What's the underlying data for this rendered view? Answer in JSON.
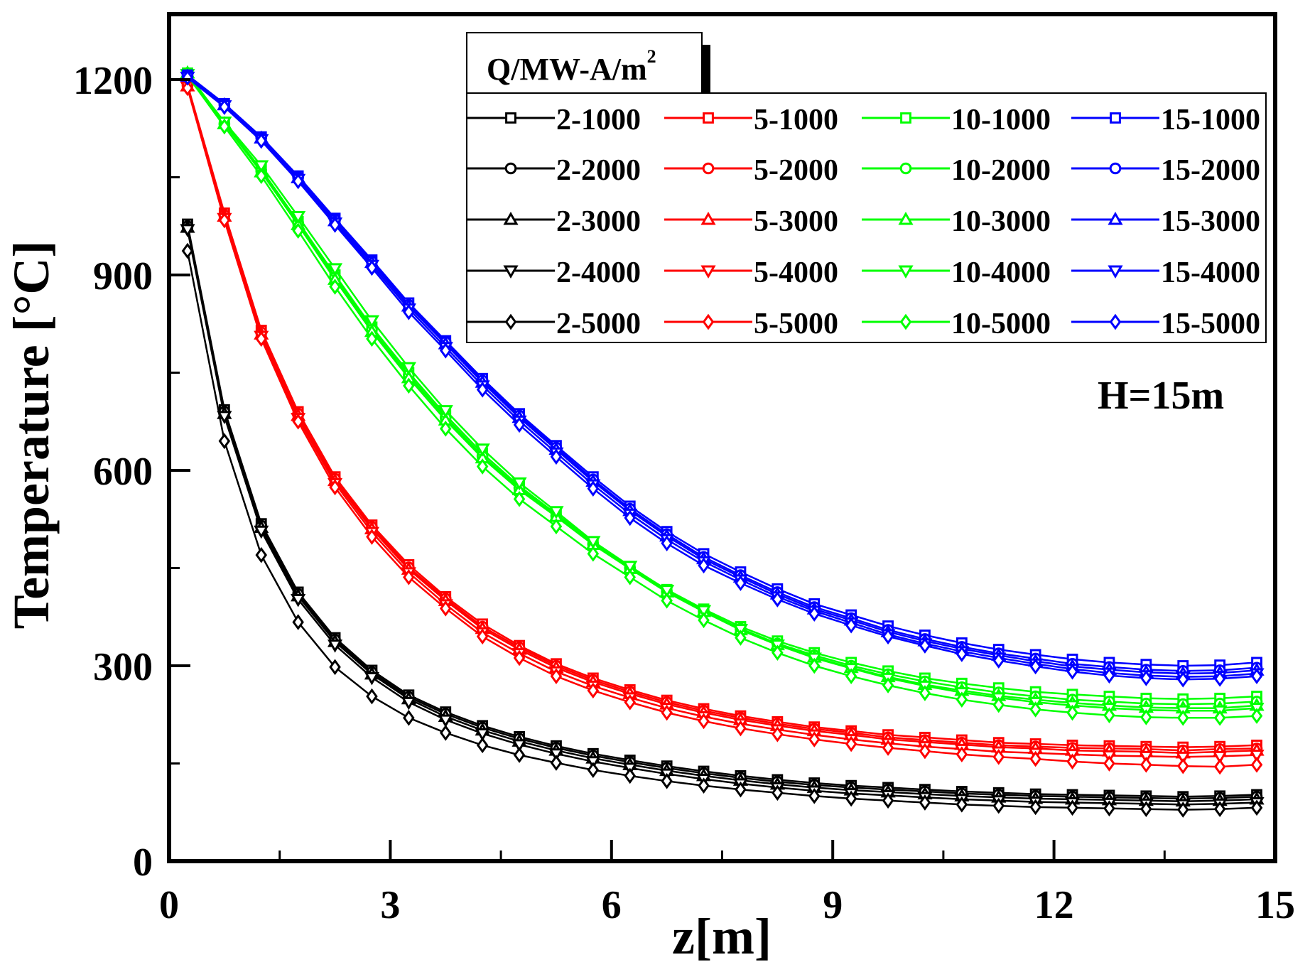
{
  "chart_data": {
    "type": "line",
    "xlabel": "z[m]",
    "ylabel": "Temperature [°C]",
    "xlim": [
      0,
      15
    ],
    "ylim": [
      0,
      1300
    ],
    "xticks": [
      0,
      3,
      6,
      9,
      12,
      15
    ],
    "yticks": [
      0,
      300,
      600,
      900,
      1200
    ],
    "xtick_labels": [
      "0",
      "3",
      "6",
      "9",
      "12",
      "15"
    ],
    "ytick_labels": [
      "0",
      "300",
      "600",
      "900",
      "1200"
    ],
    "grid": false,
    "legend_title": "Q/MW-A/m",
    "legend_title_sup": "2",
    "legend_placement": "top-right",
    "annotation": "H=15m",
    "x": [
      0.25,
      0.75,
      1.25,
      1.75,
      2.25,
      2.75,
      3.25,
      3.75,
      4.25,
      4.75,
      5.25,
      5.75,
      6.25,
      6.75,
      7.25,
      7.75,
      8.25,
      8.75,
      9.25,
      9.75,
      10.25,
      10.75,
      11.25,
      11.75,
      12.25,
      12.75,
      13.25,
      13.75,
      14.25,
      14.75
    ],
    "series": [
      {
        "name": "2-1000",
        "color": "#000000",
        "marker": "square",
        "values": [
          978,
          693,
          518,
          413,
          343,
          293,
          255,
          229,
          208,
          191,
          177,
          165,
          155,
          146,
          138,
          131,
          125,
          120,
          116,
          113,
          110,
          107,
          105,
          103,
          102,
          101,
          100,
          99,
          100,
          102
        ]
      },
      {
        "name": "2-2000",
        "color": "#000000",
        "marker": "circle",
        "values": [
          975,
          690,
          515,
          410,
          340,
          290,
          252,
          226,
          205,
          188,
          174,
          162,
          152,
          143,
          135,
          128,
          122,
          117,
          113,
          110,
          107,
          104,
          102,
          100,
          99,
          98,
          97,
          96,
          97,
          99
        ]
      },
      {
        "name": "2-3000",
        "color": "#000000",
        "marker": "triangle-up",
        "values": [
          973,
          687,
          512,
          407,
          337,
          287,
          249,
          222,
          201,
          184,
          170,
          158,
          148,
          139,
          131,
          124,
          118,
          113,
          109,
          106,
          103,
          100,
          98,
          96,
          95,
          94,
          93,
          92,
          93,
          95
        ]
      },
      {
        "name": "2-4000",
        "color": "#000000",
        "marker": "triangle-down",
        "values": [
          970,
          683,
          507,
          402,
          332,
          282,
          244,
          217,
          196,
          179,
          165,
          153,
          143,
          134,
          126,
          119,
          113,
          108,
          104,
          101,
          98,
          95,
          93,
          91,
          90,
          89,
          88,
          87,
          88,
          90
        ]
      },
      {
        "name": "2-5000",
        "color": "#000000",
        "marker": "diamond",
        "values": [
          937,
          645,
          470,
          367,
          298,
          253,
          220,
          197,
          178,
          163,
          151,
          140,
          131,
          123,
          116,
          110,
          105,
          100,
          96,
          93,
          90,
          87,
          85,
          83,
          82,
          81,
          80,
          79,
          80,
          82
        ]
      },
      {
        "name": "5-1000",
        "color": "#ff0000",
        "marker": "square",
        "values": [
          1192,
          995,
          815,
          690,
          590,
          516,
          455,
          406,
          364,
          331,
          303,
          281,
          263,
          247,
          234,
          223,
          214,
          206,
          200,
          194,
          190,
          186,
          182,
          180,
          178,
          177,
          176,
          175,
          176,
          178
        ]
      },
      {
        "name": "5-2000",
        "color": "#ff0000",
        "marker": "circle",
        "values": [
          1191,
          992,
          812,
          687,
          587,
          513,
          451,
          403,
          360,
          328,
          300,
          278,
          260,
          244,
          231,
          220,
          211,
          203,
          197,
          190,
          186,
          182,
          178,
          176,
          174,
          173,
          172,
          170,
          172,
          173
        ]
      },
      {
        "name": "5-3000",
        "color": "#ff0000",
        "marker": "triangle-up",
        "values": [
          1190,
          990,
          809,
          684,
          584,
          510,
          448,
          400,
          357,
          325,
          297,
          275,
          257,
          241,
          228,
          217,
          208,
          200,
          194,
          187,
          183,
          179,
          175,
          173,
          170,
          169,
          168,
          166,
          168,
          170
        ]
      },
      {
        "name": "5-4000",
        "color": "#ff0000",
        "marker": "triangle-down",
        "values": [
          1189,
          987,
          806,
          680,
          580,
          505,
          443,
          394,
          351,
          319,
          291,
          269,
          251,
          235,
          222,
          211,
          202,
          194,
          187,
          181,
          176,
          172,
          168,
          166,
          164,
          162,
          161,
          160,
          161,
          163
        ]
      },
      {
        "name": "5-5000",
        "color": "#ff0000",
        "marker": "diamond",
        "values": [
          1187,
          984,
          802,
          675,
          574,
          498,
          436,
          388,
          345,
          312,
          284,
          262,
          244,
          228,
          215,
          204,
          195,
          187,
          180,
          174,
          169,
          164,
          160,
          157,
          153,
          150,
          148,
          146,
          145,
          148
        ]
      },
      {
        "name": "10-1000",
        "color": "#00ff00",
        "marker": "square",
        "values": [
          1210,
          1133,
          1062,
          982,
          900,
          820,
          750,
          685,
          626,
          576,
          533,
          490,
          452,
          417,
          387,
          360,
          338,
          320,
          305,
          292,
          281,
          273,
          266,
          260,
          256,
          253,
          250,
          249,
          250,
          253
        ]
      },
      {
        "name": "10-2000",
        "color": "#00ff00",
        "marker": "circle",
        "values": [
          1210,
          1132,
          1060,
          980,
          896,
          816,
          746,
          681,
          622,
          573,
          530,
          487,
          450,
          414,
          384,
          357,
          334,
          316,
          300,
          287,
          276,
          267,
          259,
          253,
          248,
          245,
          242,
          241,
          242,
          245
        ]
      },
      {
        "name": "10-3000",
        "color": "#00ff00",
        "marker": "triangle-up",
        "values": [
          1210,
          1132,
          1058,
          977,
          893,
          813,
          742,
          677,
          619,
          570,
          529,
          486,
          449,
          413,
          383,
          355,
          332,
          313,
          297,
          283,
          271,
          262,
          254,
          248,
          243,
          239,
          236,
          235,
          235,
          239
        ]
      },
      {
        "name": "10-4000",
        "color": "#00ff00",
        "marker": "triangle-down",
        "values": [
          1208,
          1135,
          1068,
          990,
          910,
          830,
          758,
          692,
          633,
          581,
          537,
          491,
          453,
          416,
          385,
          356,
          332,
          312,
          296,
          281,
          269,
          259,
          251,
          244,
          239,
          235,
          232,
          231,
          231,
          235
        ]
      },
      {
        "name": "10-5000",
        "color": "#00ff00",
        "marker": "diamond",
        "values": [
          1206,
          1128,
          1052,
          968,
          882,
          802,
          730,
          664,
          606,
          556,
          514,
          472,
          436,
          400,
          370,
          343,
          320,
          300,
          284,
          270,
          258,
          248,
          240,
          233,
          228,
          224,
          221,
          220,
          220,
          223
        ]
      },
      {
        "name": "15-1000",
        "color": "#0000ff",
        "marker": "square",
        "values": [
          1207,
          1163,
          1112,
          1052,
          987,
          923,
          857,
          799,
          741,
          687,
          638,
          590,
          545,
          506,
          472,
          444,
          418,
          395,
          378,
          361,
          347,
          335,
          325,
          317,
          310,
          305,
          302,
          300,
          301,
          305
        ]
      },
      {
        "name": "15-2000",
        "color": "#0000ff",
        "marker": "circle",
        "values": [
          1206,
          1162,
          1111,
          1050,
          985,
          921,
          854,
          797,
          738,
          684,
          635,
          586,
          541,
          502,
          467,
          439,
          413,
          390,
          373,
          355,
          341,
          329,
          319,
          311,
          303,
          298,
          294,
          292,
          293,
          297
        ]
      },
      {
        "name": "15-3000",
        "color": "#0000ff",
        "marker": "triangle-up",
        "values": [
          1205,
          1161,
          1110,
          1049,
          983,
          919,
          852,
          794,
          735,
          681,
          632,
          583,
          538,
          499,
          464,
          436,
          410,
          387,
          370,
          352,
          338,
          326,
          316,
          307,
          299,
          294,
          290,
          288,
          289,
          293
        ]
      },
      {
        "name": "15-4000",
        "color": "#0000ff",
        "marker": "triangle-down",
        "values": [
          1204,
          1160,
          1108,
          1047,
          980,
          915,
          848,
          789,
          730,
          676,
          627,
          578,
          533,
          494,
          460,
          432,
          406,
          384,
          366,
          348,
          334,
          322,
          312,
          303,
          295,
          289,
          285,
          283,
          284,
          288
        ]
      },
      {
        "name": "15-5000",
        "color": "#0000ff",
        "marker": "diamond",
        "values": [
          1203,
          1158,
          1106,
          1044,
          977,
          911,
          843,
          784,
          724,
          670,
          621,
          572,
          527,
          488,
          454,
          427,
          402,
          380,
          362,
          345,
          331,
          318,
          308,
          299,
          291,
          285,
          281,
          279,
          280,
          284
        ]
      }
    ]
  }
}
